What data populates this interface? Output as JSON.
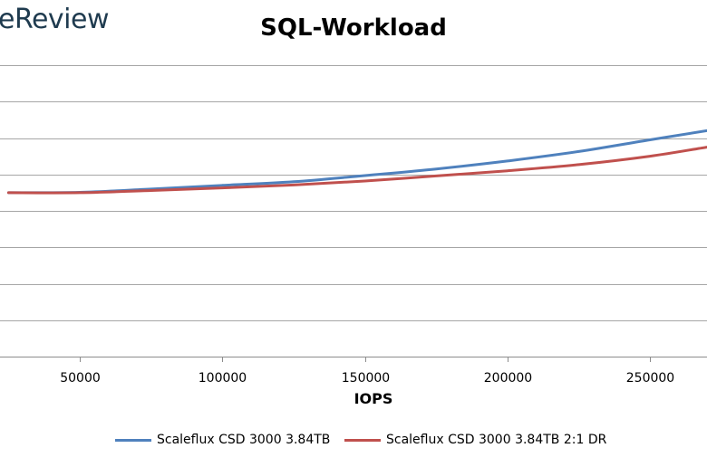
{
  "logo_text": "eReview",
  "chart_data": {
    "type": "line",
    "title": "SQL-Workload",
    "xlabel": "IOPS",
    "ylabel": "",
    "x_ticks": [
      50000,
      100000,
      150000,
      200000,
      250000
    ],
    "xlim": [
      22000,
      270000
    ],
    "ylim": [
      0,
      8
    ],
    "grid": true,
    "legend_position": "bottom",
    "series": [
      {
        "name": "Scaleflux CSD 3000 3.84TB",
        "color": "#4f81bd",
        "x": [
          25000,
          50000,
          75000,
          100000,
          125000,
          150000,
          175000,
          200000,
          225000,
          250000,
          270000
        ],
        "y": [
          4.5,
          4.51,
          4.6,
          4.7,
          4.8,
          4.97,
          5.15,
          5.37,
          5.63,
          5.95,
          6.2
        ]
      },
      {
        "name": "Scaleflux CSD 3000 3.84TB 2:1 DR",
        "color": "#c0504d",
        "x": [
          25000,
          50000,
          75000,
          100000,
          125000,
          150000,
          175000,
          200000,
          225000,
          250000,
          270000
        ],
        "y": [
          4.5,
          4.5,
          4.56,
          4.63,
          4.71,
          4.82,
          4.96,
          5.1,
          5.27,
          5.5,
          5.75
        ]
      }
    ]
  }
}
